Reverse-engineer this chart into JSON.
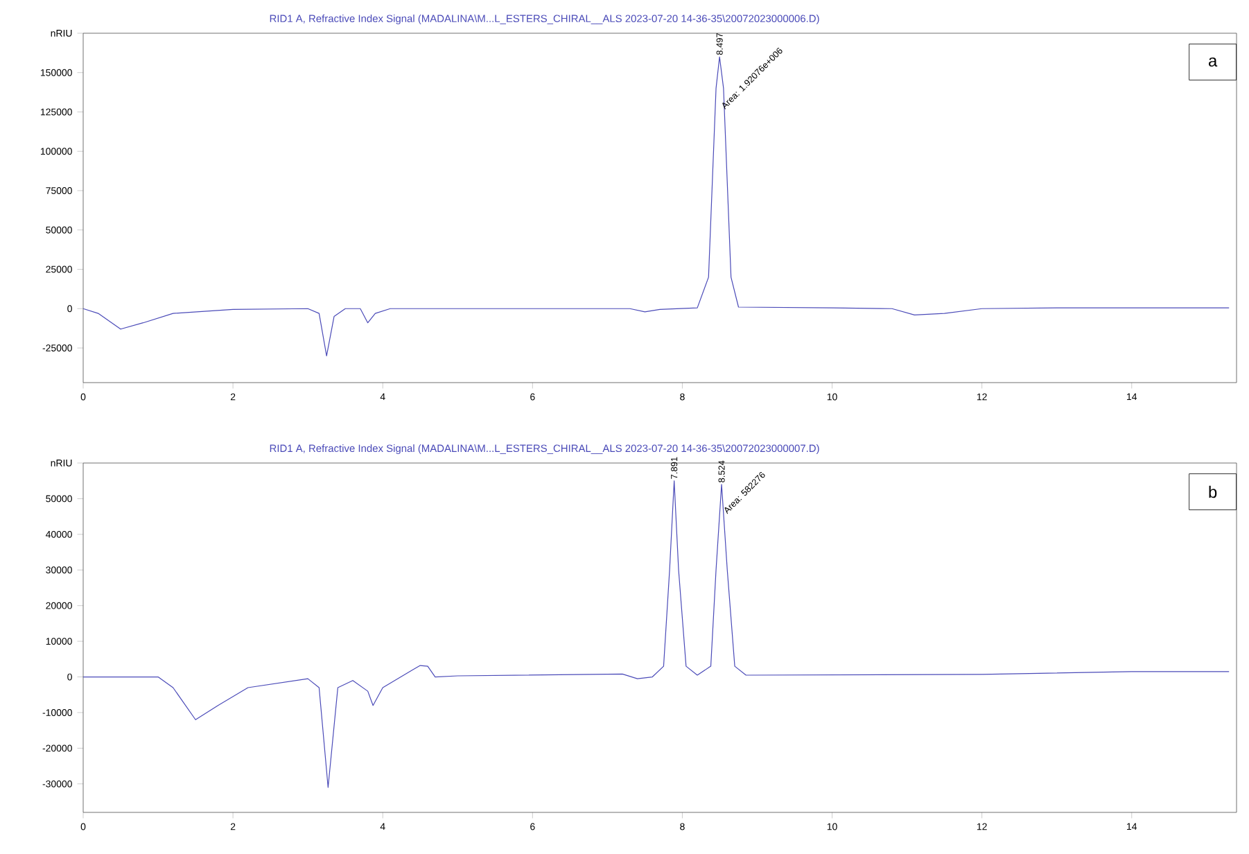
{
  "chart_data": [
    {
      "type": "line",
      "title": "RID1 A, Refractive Index Signal (MADALINA\\M...L_ESTERS_CHIRAL__ALS 2023-07-20 14-36-35\\20072023000006.D)",
      "annotations": [
        {
          "text": "8.497",
          "x": 8.497,
          "y": 160000
        },
        {
          "text": "Area: 1.92076e+006",
          "x": 8.57,
          "y": 125000
        },
        "a"
      ],
      "x": [
        0,
        0.2,
        0.5,
        0.8,
        1.2,
        2,
        3.0,
        3.15,
        3.25,
        3.35,
        3.5,
        3.7,
        3.8,
        3.9,
        4.1,
        7.3,
        7.5,
        7.7,
        8.2,
        8.35,
        8.45,
        8.497,
        8.55,
        8.65,
        8.75,
        10,
        10.8,
        11.1,
        11.5,
        12,
        13,
        15.3
      ],
      "series": [
        {
          "color": "#4a4ab8",
          "values": [
            0,
            -3000,
            -13000,
            -9000,
            -3000,
            -500,
            0,
            -3000,
            -30000,
            -5000,
            0,
            0,
            -9000,
            -3000,
            0,
            0,
            -2000,
            -500,
            500,
            20000,
            140000,
            160000,
            140000,
            20000,
            1000,
            500,
            0,
            -4000,
            -3000,
            0,
            500,
            500
          ]
        }
      ],
      "xlim": [
        0,
        15.4
      ],
      "ylim": [
        -47000,
        175000
      ],
      "xticks": [
        0,
        2,
        4,
        6,
        8,
        10,
        12,
        14
      ],
      "yticks": [
        -25000,
        0,
        25000,
        50000,
        75000,
        100000,
        125000,
        150000,
        {
          "value": 175000,
          "label": "nRIU"
        }
      ],
      "grid": false,
      "line_style": "solid",
      "marker": "none"
    },
    {
      "type": "line",
      "title": "RID1 A, Refractive Index Signal (MADALINA\\M...L_ESTERS_CHIRAL__ALS 2023-07-20 14-36-35\\20072023000007.D)",
      "annotations": [
        {
          "text": "7.891",
          "x": 7.891,
          "y": 55000
        },
        {
          "text": "8.524",
          "x": 8.524,
          "y": 54000
        },
        {
          "text": "Area: 582276",
          "x": 8.6,
          "y": 45000
        },
        "b"
      ],
      "x": [
        0,
        1.0,
        1.2,
        1.5,
        1.8,
        2.2,
        3.0,
        3.15,
        3.27,
        3.4,
        3.6,
        3.8,
        3.87,
        4.0,
        4.2,
        4.4,
        4.5,
        4.6,
        4.7,
        5,
        7.2,
        7.4,
        7.6,
        7.75,
        7.83,
        7.891,
        7.95,
        8.05,
        8.2,
        8.38,
        8.45,
        8.524,
        8.6,
        8.7,
        8.85,
        12,
        14,
        15.3
      ],
      "series": [
        {
          "color": "#4a4ab8",
          "values": [
            0,
            0,
            -3000,
            -12000,
            -8000,
            -3000,
            -500,
            -3000,
            -31000,
            -3000,
            -1000,
            -4000,
            -8000,
            -3000,
            -500,
            2000,
            3200,
            3000,
            0,
            300,
            800,
            -500,
            0,
            3000,
            30000,
            55000,
            30000,
            3000,
            500,
            3000,
            30000,
            54000,
            30000,
            3000,
            500,
            700,
            1500,
            1500
          ]
        }
      ],
      "xlim": [
        0,
        15.4
      ],
      "ylim": [
        -38000,
        60000
      ],
      "xticks": [
        0,
        2,
        4,
        6,
        8,
        10,
        12,
        14
      ],
      "yticks": [
        -30000,
        -20000,
        -10000,
        0,
        10000,
        20000,
        30000,
        40000,
        50000,
        {
          "value": 60000,
          "label": "nRIU"
        }
      ],
      "grid": false,
      "line_style": "solid",
      "marker": "none"
    }
  ]
}
